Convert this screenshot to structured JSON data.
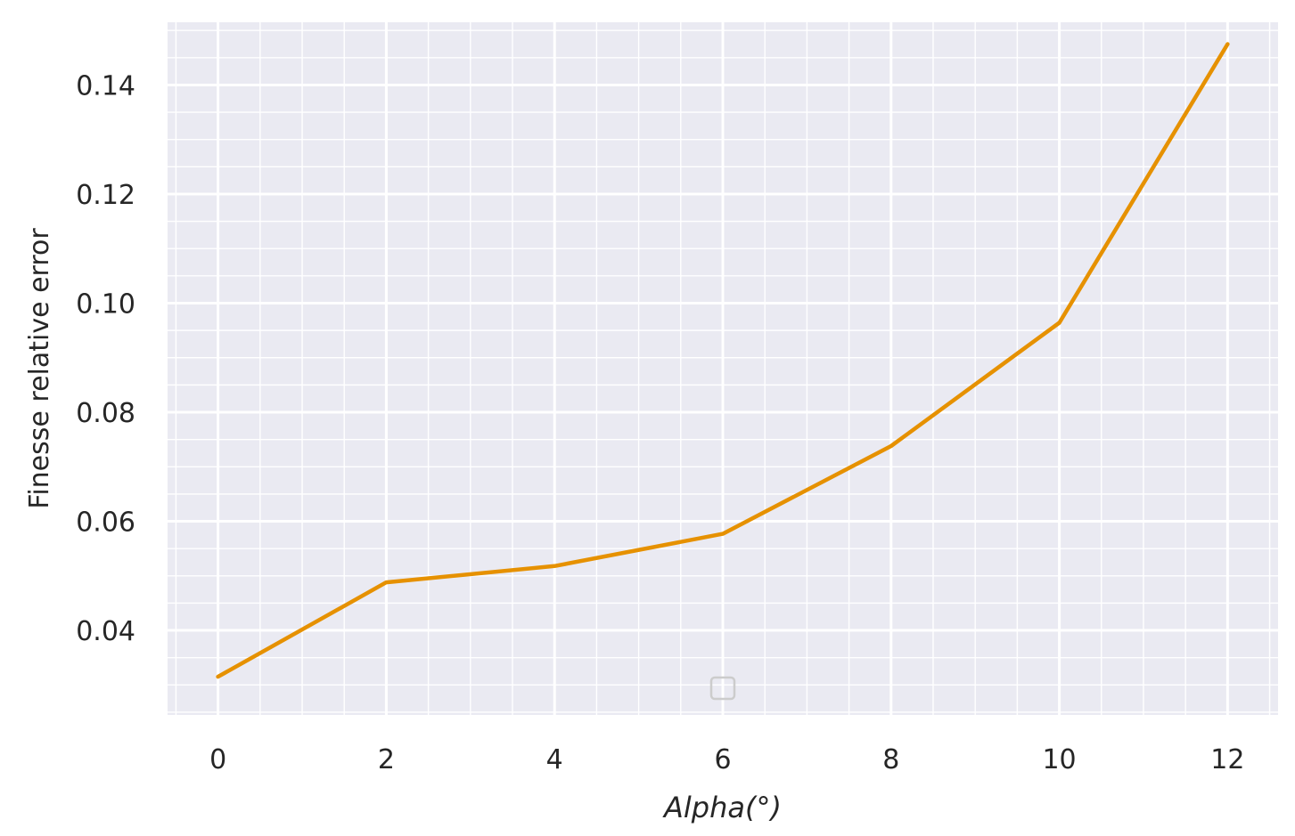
{
  "chart_data": {
    "type": "line",
    "title": "",
    "xlabel": "Alpha(°)",
    "ylabel": "Finesse relative error",
    "xlim": [
      -0.6,
      12.6
    ],
    "ylim": [
      0.0245,
      0.1515
    ],
    "x_ticks": [
      0,
      2,
      4,
      6,
      8,
      10,
      12
    ],
    "y_ticks": [
      0.04,
      0.06,
      0.08,
      0.1,
      0.12,
      0.14
    ],
    "x_tick_labels": [
      "0",
      "2",
      "4",
      "6",
      "8",
      "10",
      "12"
    ],
    "y_tick_labels": [
      "0.04",
      "0.06",
      "0.08",
      "0.10",
      "0.12",
      "0.14"
    ],
    "grid": true,
    "minor_grid": true,
    "legend": "bottom-center, empty",
    "colors": {
      "background": "#eaeaf2",
      "grid": "#ffffff",
      "line": "#e69100",
      "legend_box": "#cccccc"
    },
    "series": [
      {
        "x": [
          0,
          2,
          4,
          6,
          8,
          10,
          12
        ],
        "y": [
          0.0315,
          0.0488,
          0.0518,
          0.0577,
          0.0738,
          0.0964,
          0.1475
        ]
      }
    ]
  }
}
